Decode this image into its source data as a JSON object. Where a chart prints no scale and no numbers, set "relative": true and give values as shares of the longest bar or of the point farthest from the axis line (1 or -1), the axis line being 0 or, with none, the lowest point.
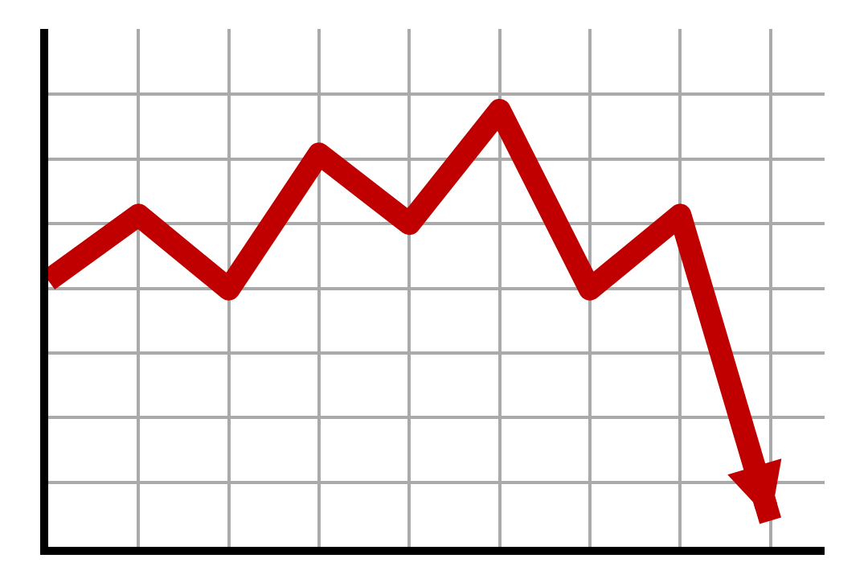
{
  "chart_data": {
    "type": "line",
    "relative": true,
    "categories": [
      null,
      null,
      null,
      null,
      null,
      null,
      null,
      null,
      null
    ],
    "series": [
      {
        "color": "#c00000",
        "values": [
          0.61,
          0.76,
          0.59,
          0.9,
          0.74,
          1,
          0.59,
          0.76,
          0.06
        ]
      }
    ],
    "grid": true,
    "marker": "none",
    "line_style": "solid"
  }
}
